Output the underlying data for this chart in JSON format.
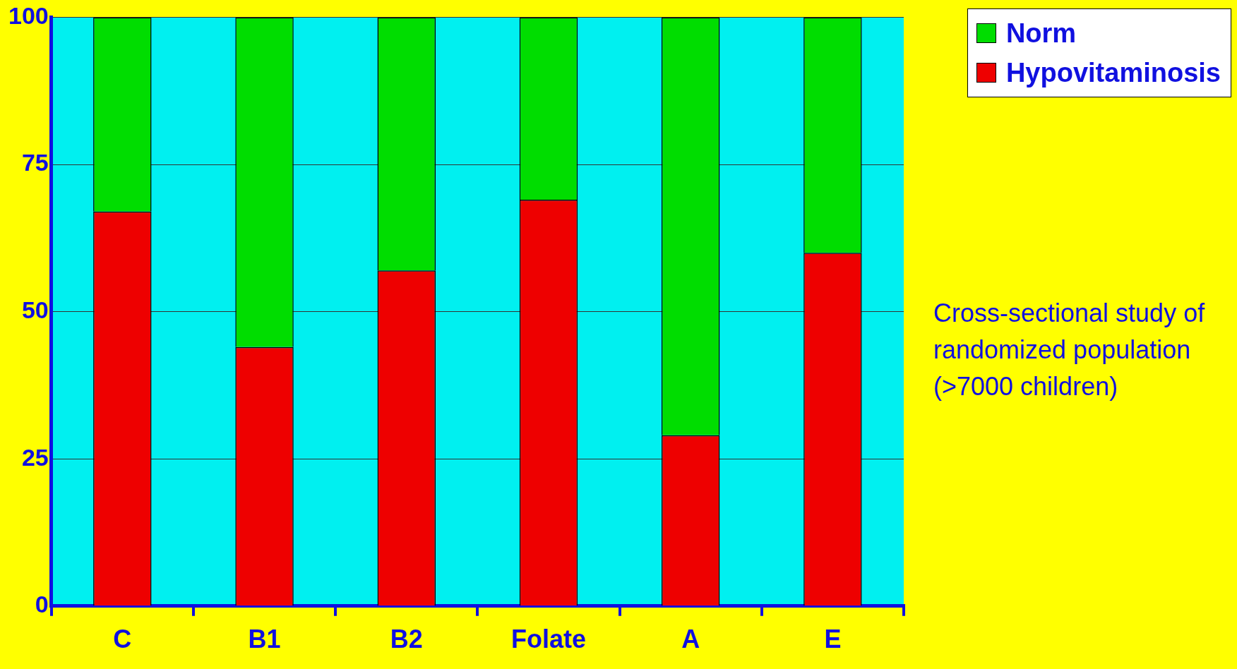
{
  "chart_data": {
    "type": "bar",
    "stacked": true,
    "categories": [
      "C",
      "B1",
      "B2",
      "Folate",
      "A",
      "E"
    ],
    "series": [
      {
        "name": "Hypovitaminosis",
        "color": "#ee0000",
        "values": [
          67,
          44,
          57,
          69,
          29,
          60
        ]
      },
      {
        "name": "Norm",
        "color": "#00dd00",
        "values": [
          33,
          56,
          43,
          31,
          71,
          40
        ]
      }
    ],
    "ylim": [
      0,
      100
    ],
    "yticks": [
      0,
      25,
      50,
      75,
      100
    ],
    "grid": "y",
    "legend": "top right",
    "annotations": [
      "Cross-sectional study of randomized population (>7000 children)"
    ]
  }
}
